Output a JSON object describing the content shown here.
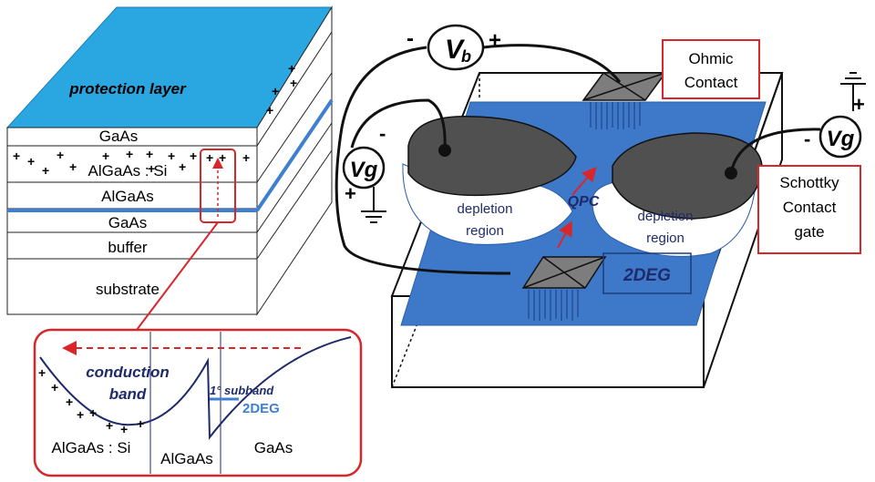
{
  "layer_stack": {
    "protection_layer": "protection layer",
    "layers": [
      "GaAs",
      "AlGaAs : Si",
      "AlGaAs",
      "GaAs",
      "buffer",
      "substrate"
    ]
  },
  "band_diagram": {
    "conduction_band_line1": "conduction",
    "conduction_band_line2": "band",
    "subband": "1° subband",
    "twodeg": "2DEG",
    "region_algaas_si": "AlGaAs : Si",
    "region_algaas": "AlGaAs",
    "region_gaas": "GaAs"
  },
  "device": {
    "vb_sign_minus": "-",
    "vb_letter": "V",
    "vb_sub": "b",
    "vb_sign_plus": "+",
    "vg_left": "Vg",
    "vg_left_minus": "-",
    "vg_left_plus": "+",
    "vg_right": "Vg",
    "vg_right_minus": "-",
    "vg_right_plus": "+",
    "ohmic_line1": "Ohmic",
    "ohmic_line2": "Contact",
    "schottky_line1": "Schottky",
    "schottky_line2": "Contact",
    "schottky_line3": "gate",
    "depletion_left_1": "depletion",
    "depletion_left_2": "region",
    "depletion_right_1": "depletion",
    "depletion_right_2": "region",
    "qpc": "QPC",
    "twodeg_label": "2DEG"
  },
  "colors": {
    "protection": "#2aa6e0",
    "device_blue": "#3d78c9",
    "gate_gray": "#505050",
    "box_red": "#d9262b",
    "navy": "#1f2a6b"
  }
}
